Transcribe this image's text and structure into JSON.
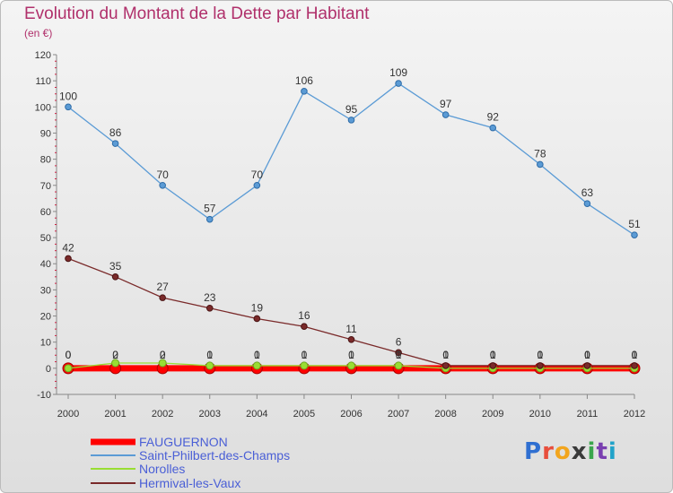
{
  "chart_data": {
    "type": "line",
    "title": "Evolution du Montant de la Dette par Habitant",
    "subtitle": "(en €)",
    "xlabel": "",
    "ylabel": "",
    "ylim": [
      -10,
      120
    ],
    "y_ticks": [
      -10,
      0,
      10,
      20,
      30,
      40,
      50,
      60,
      70,
      80,
      90,
      100,
      110,
      120
    ],
    "categories": [
      "2000",
      "2001",
      "2002",
      "2003",
      "2004",
      "2005",
      "2006",
      "2007",
      "2008",
      "2009",
      "2010",
      "2011",
      "2012"
    ],
    "grid": false,
    "legend_position": "bottom-left",
    "series": [
      {
        "name": "FAUGUERNON",
        "color": "#ff0000",
        "values": [
          0,
          0,
          0,
          0,
          0,
          0,
          0,
          0,
          0,
          0,
          0,
          0,
          0
        ],
        "labels": [
          "0",
          "0",
          "0",
          "0",
          "0",
          "0",
          "0",
          "0",
          "0",
          "0",
          "0",
          "0",
          "0"
        ]
      },
      {
        "name": "Saint-Philbert-des-Champs",
        "color": "#5b9bd5",
        "values": [
          100,
          86,
          70,
          57,
          70,
          106,
          95,
          109,
          97,
          92,
          78,
          63,
          51
        ],
        "labels": [
          "100",
          "86",
          "70",
          "57",
          "70",
          "106",
          "95",
          "109",
          "97",
          "92",
          "78",
          "63",
          "51"
        ]
      },
      {
        "name": "Norolles",
        "color": "#99dd33",
        "values": [
          0,
          2,
          2,
          1,
          1,
          1,
          1,
          1,
          0,
          0,
          0,
          0,
          0
        ],
        "labels": [
          "0",
          "2",
          "2",
          "1",
          "1",
          "1",
          "1",
          "1",
          "0",
          "0",
          "0",
          "0",
          "0"
        ]
      },
      {
        "name": "Hermival-les-Vaux",
        "color": "#7a2a2a",
        "values": [
          42,
          35,
          27,
          23,
          19,
          16,
          11,
          6,
          1,
          1,
          1,
          1,
          1
        ],
        "labels": [
          "42",
          "35",
          "27",
          "23",
          "19",
          "16",
          "11",
          "6",
          "1",
          "1",
          "1",
          "1",
          "1"
        ]
      }
    ]
  },
  "brand": {
    "letters": [
      "P",
      "r",
      "o",
      "x",
      "i",
      "t",
      "i"
    ],
    "colors": [
      "#2f6fd1",
      "#e84e3c",
      "#f2a51d",
      "#3a3a3a",
      "#3aa64c",
      "#7a3fb0",
      "#22a3c9"
    ]
  }
}
